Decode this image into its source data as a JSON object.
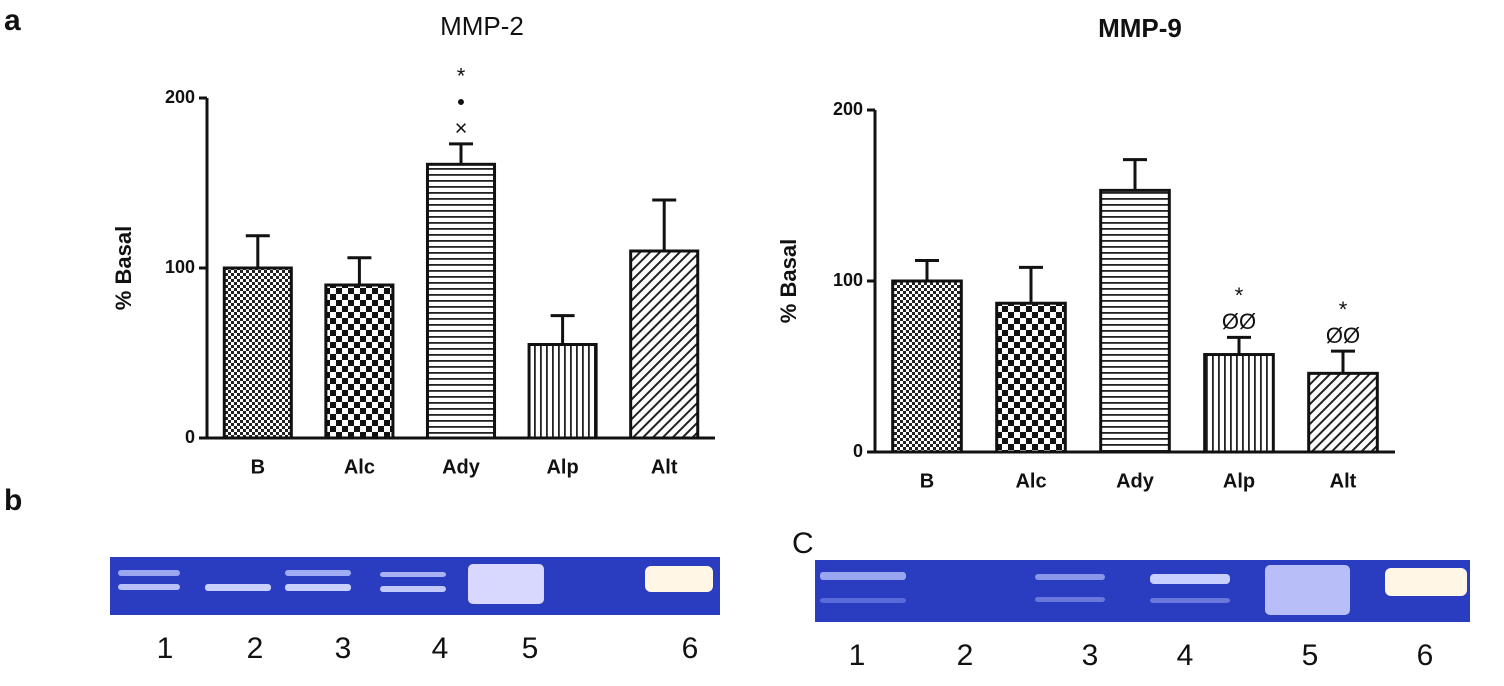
{
  "panel_labels": [
    "a",
    "b"
  ],
  "chart_data": [
    {
      "type": "bar",
      "title": "MMP-2",
      "y_label": "% Basal",
      "categories": [
        "B",
        "Alc",
        "Ady",
        "Alp",
        "Alt"
      ],
      "values": [
        100,
        90,
        161,
        55,
        110
      ],
      "errors": [
        19,
        16,
        12,
        17,
        30
      ],
      "annotations": [
        null,
        null,
        [
          "*",
          "•",
          "×"
        ],
        null,
        null
      ],
      "patterns": [
        "dots",
        "checker",
        "hlines",
        "vlines",
        "diagonal"
      ],
      "color": "#111111",
      "ylim": [
        0,
        200
      ],
      "yticks": [
        0,
        100,
        200
      ]
    },
    {
      "type": "bar",
      "title": "MMP-9",
      "y_label": "% Basal",
      "categories": [
        "B",
        "Alc",
        "Ady",
        "Alp",
        "Alt"
      ],
      "values": [
        100,
        87,
        153,
        57,
        46
      ],
      "errors": [
        12,
        21,
        18,
        10,
        13
      ],
      "annotations": [
        null,
        null,
        null,
        [
          "*",
          "ØØ"
        ],
        [
          "*",
          "ØØ"
        ]
      ],
      "patterns": [
        "dots",
        "checker",
        "hlines",
        "vlines",
        "diagonal"
      ],
      "color": "#111111",
      "ylim": [
        0,
        200
      ],
      "yticks": [
        0,
        100,
        200
      ]
    }
  ],
  "gels": [
    {
      "lanes": [
        "1",
        "2",
        "3",
        "4",
        "5",
        "6"
      ]
    },
    {
      "label": "C",
      "lanes": [
        "1",
        "2",
        "3",
        "4",
        "5",
        "6"
      ]
    }
  ]
}
